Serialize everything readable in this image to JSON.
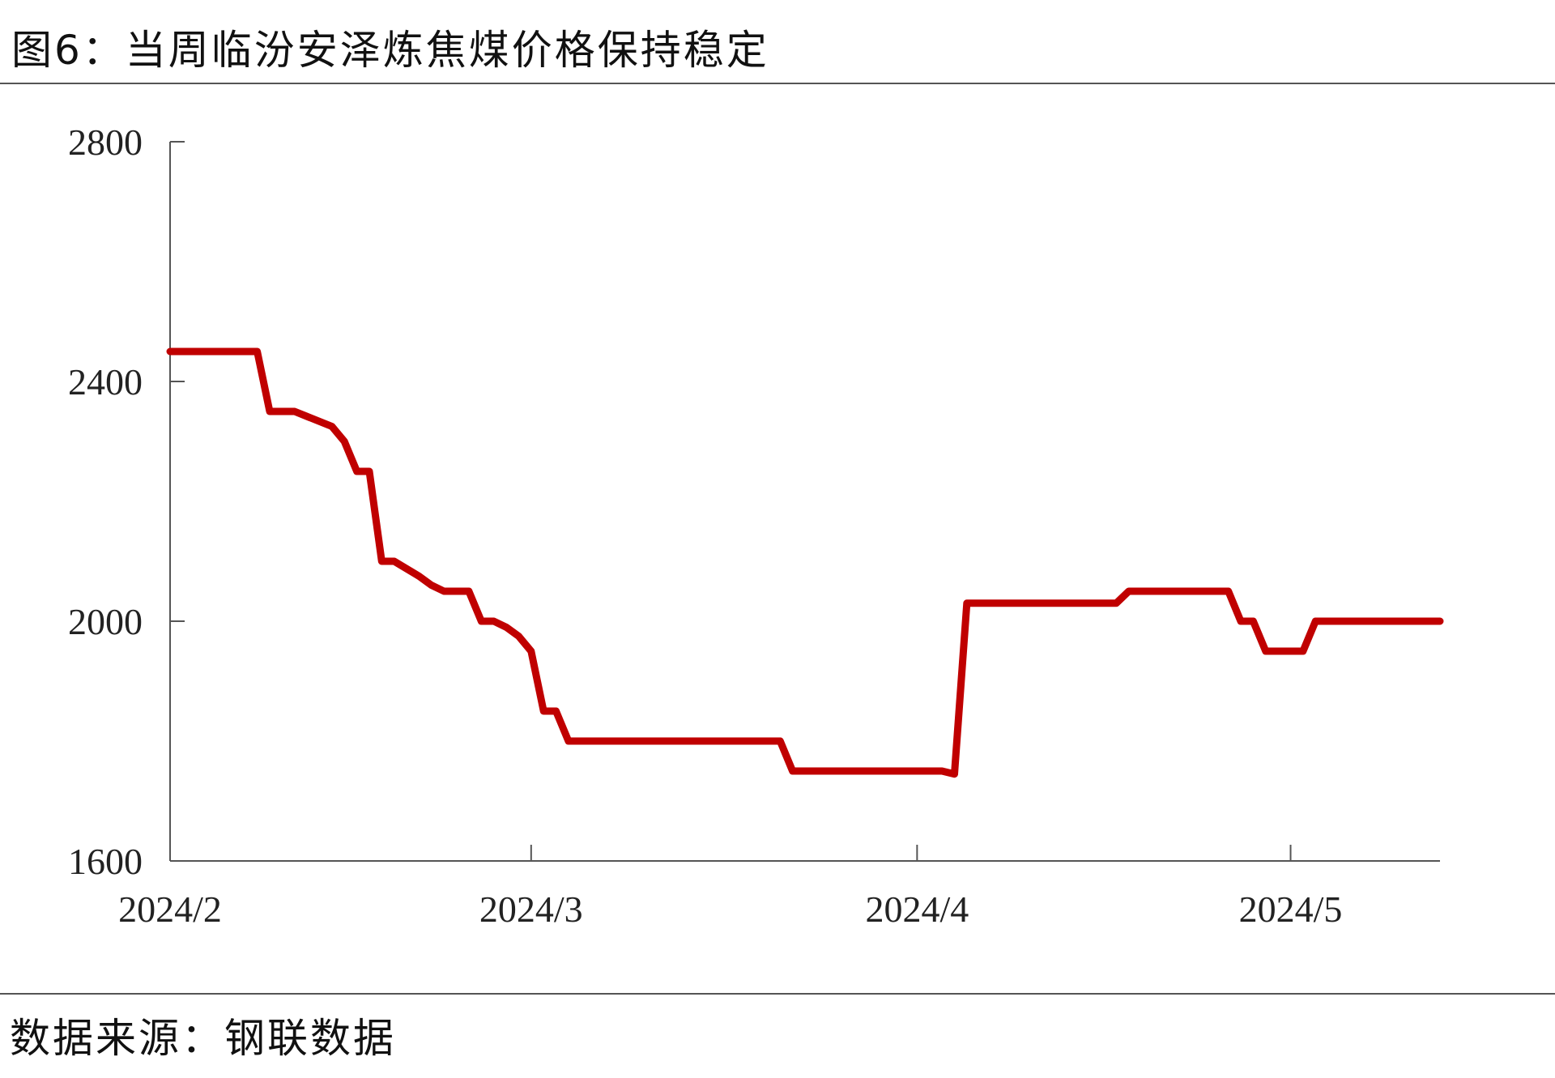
{
  "title": "图6：当周临汾安泽炼焦煤价格保持稳定",
  "source": "数据来源：钢联数据",
  "colors": {
    "line": "#c00000",
    "axis": "#555555",
    "rule": "#555555"
  },
  "chart_data": {
    "type": "line",
    "xlabel": "",
    "ylabel": "",
    "ylim": [
      1600,
      2800
    ],
    "yticks": [
      "1600",
      "2000",
      "2400",
      "2800"
    ],
    "xlim": [
      "2024-02-01",
      "2024-05-13"
    ],
    "xticks": [
      {
        "date": "2024-02-01",
        "label": "2024/2"
      },
      {
        "date": "2024-03-01",
        "label": "2024/3"
      },
      {
        "date": "2024-04-01",
        "label": "2024/4"
      },
      {
        "date": "2024-05-01",
        "label": "2024/5"
      }
    ],
    "grid": false,
    "series": [
      {
        "name": "",
        "points": [
          [
            "2024-02-01",
            2450
          ],
          [
            "2024-02-08",
            2450
          ],
          [
            "2024-02-09",
            2350
          ],
          [
            "2024-02-11",
            2350
          ],
          [
            "2024-02-14",
            2325
          ],
          [
            "2024-02-15",
            2300
          ],
          [
            "2024-02-16",
            2250
          ],
          [
            "2024-02-17",
            2250
          ],
          [
            "2024-02-18",
            2100
          ],
          [
            "2024-02-19",
            2100
          ],
          [
            "2024-02-21",
            2075
          ],
          [
            "2024-02-22",
            2060
          ],
          [
            "2024-02-23",
            2050
          ],
          [
            "2024-02-24",
            2050
          ],
          [
            "2024-02-25",
            2050
          ],
          [
            "2024-02-26",
            2000
          ],
          [
            "2024-02-27",
            2000
          ],
          [
            "2024-02-28",
            1990
          ],
          [
            "2024-02-29",
            1975
          ],
          [
            "2024-03-01",
            1950
          ],
          [
            "2024-03-02",
            1850
          ],
          [
            "2024-03-03",
            1850
          ],
          [
            "2024-03-04",
            1800
          ],
          [
            "2024-03-21",
            1800
          ],
          [
            "2024-03-22",
            1750
          ],
          [
            "2024-04-03",
            1750
          ],
          [
            "2024-04-04",
            1745
          ],
          [
            "2024-04-05",
            2030
          ],
          [
            "2024-04-17",
            2030
          ],
          [
            "2024-04-18",
            2050
          ],
          [
            "2024-04-26",
            2050
          ],
          [
            "2024-04-27",
            2000
          ],
          [
            "2024-04-28",
            2000
          ],
          [
            "2024-04-29",
            1950
          ],
          [
            "2024-05-02",
            1950
          ],
          [
            "2024-05-03",
            2000
          ],
          [
            "2024-05-13",
            2000
          ]
        ]
      }
    ]
  }
}
